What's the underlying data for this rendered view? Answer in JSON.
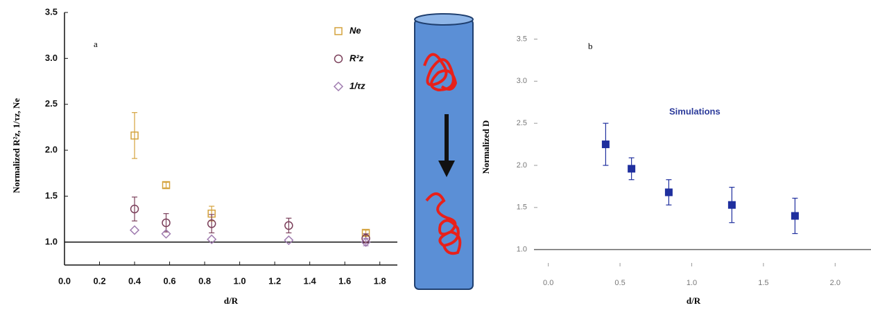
{
  "chart_data": [
    {
      "type": "scatter",
      "panel_label": "a",
      "x_label": "d/R",
      "y_label": "Normalized R²z, 1/τz, Ne",
      "xlim": [
        0,
        1.9
      ],
      "ylim": [
        0.75,
        3.5
      ],
      "xticks": [
        {
          "value": 0,
          "label": "0.0"
        },
        0.2,
        0.4,
        0.6,
        0.8,
        {
          "value": 1,
          "label": "1.0"
        },
        1.2,
        1.4,
        1.6,
        1.8
      ],
      "yticks": [
        {
          "value": 1,
          "label": "1.0"
        },
        1.5,
        {
          "value": 2,
          "label": "2.0"
        },
        2.5,
        {
          "value": 3,
          "label": "3.0"
        },
        3.5
      ],
      "hline": 1,
      "legend": "upper right",
      "series": [
        {
          "name": "Ne",
          "marker": "square",
          "filled": false,
          "color": "#d4a23c",
          "x": [
            0.4,
            0.58,
            0.84,
            1.72
          ],
          "values": [
            2.16,
            1.62,
            1.31,
            1.1
          ],
          "errors": [
            0.25,
            0.03,
            0.08,
            0.03
          ]
        },
        {
          "name": "R²z",
          "marker": "circle",
          "filled": false,
          "color": "#7b3f5a",
          "x": [
            0.4,
            0.58,
            0.84,
            1.28,
            1.72
          ],
          "values": [
            1.36,
            1.21,
            1.2,
            1.18,
            1.04
          ],
          "errors": [
            0.13,
            0.1,
            0.1,
            0.08,
            0.05
          ]
        },
        {
          "name": "1/τz",
          "marker": "diamond",
          "filled": false,
          "color": "#a07cb0",
          "x": [
            0.4,
            0.58,
            0.84,
            1.28,
            1.72
          ],
          "values": [
            1.13,
            1.09,
            1.03,
            1.02,
            1.0
          ],
          "errors": [
            0,
            0,
            0,
            0,
            0.04
          ]
        }
      ]
    },
    {
      "type": "scatter",
      "panel_label": "b",
      "annotation": "Simulations",
      "x_label": "d/R",
      "y_label": "Normalized D",
      "xlim": [
        -0.1,
        2.25
      ],
      "ylim": [
        0.8,
        3.8
      ],
      "xticks": [
        {
          "value": 0,
          "label": "0.0"
        },
        0.5,
        {
          "value": 1,
          "label": "1.0"
        },
        1.5,
        {
          "value": 2,
          "label": "2.0"
        }
      ],
      "yticks": [
        {
          "value": 1,
          "label": "1.0"
        },
        1.5,
        {
          "value": 2,
          "label": "2.0"
        },
        2.5,
        {
          "value": 3,
          "label": "3.0"
        },
        3.5
      ],
      "hline": 1,
      "series": [
        {
          "marker": "square",
          "filled": true,
          "color": "#1f2f9e",
          "x": [
            0.4,
            0.58,
            0.84,
            1.28,
            1.72
          ],
          "values": [
            2.25,
            1.96,
            1.68,
            1.53,
            1.4
          ],
          "errors": [
            0.25,
            0.13,
            0.15,
            0.21,
            0.21
          ]
        }
      ]
    }
  ]
}
